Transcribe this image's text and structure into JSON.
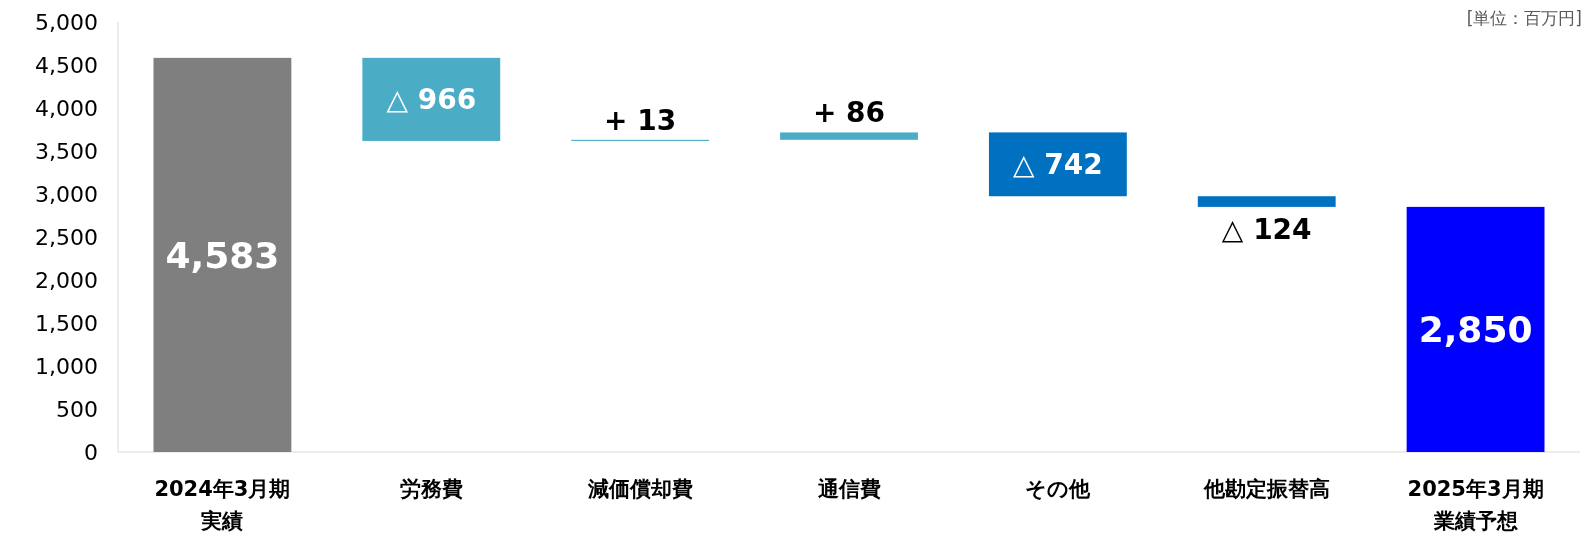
{
  "chart_data": {
    "type": "bar",
    "categories": [
      "2024年3月期実績",
      "労務費",
      "減価償却費",
      "通信費",
      "その他",
      "他勘定振替高",
      "2025年3月期業績予想"
    ],
    "base": [
      0,
      4583,
      3617,
      3630,
      3716,
      2974,
      0
    ],
    "values": [
      4583,
      -966,
      13,
      86,
      -742,
      -124,
      2850
    ],
    "colors": [
      "#7f7f7f",
      "#4bacc6",
      "#4bacc6",
      "#4bacc6",
      "#0070c0",
      "#0070c0",
      "#0000ff"
    ],
    "value_labels": [
      "4,583",
      "△ 966",
      "+ 13",
      "+ 86",
      "△ 742",
      "△ 124",
      "2,850"
    ],
    "ylim": [
      0,
      5000
    ],
    "yticks": [
      0,
      500,
      {
        "value": 1000,
        "label": "1,000"
      },
      {
        "value": 1500,
        "label": "1,500"
      },
      {
        "value": 2000,
        "label": "2,000"
      },
      {
        "value": 2500,
        "label": "2,500"
      },
      {
        "value": 3000,
        "label": "3,000"
      },
      {
        "value": 3500,
        "label": "3,500"
      },
      {
        "value": 4000,
        "label": "4,000"
      },
      {
        "value": 4500,
        "label": "4,500"
      },
      {
        "value": 5000,
        "label": "5,000"
      }
    ],
    "annotations": [
      "[単位：百万円]"
    ],
    "grid": false
  }
}
